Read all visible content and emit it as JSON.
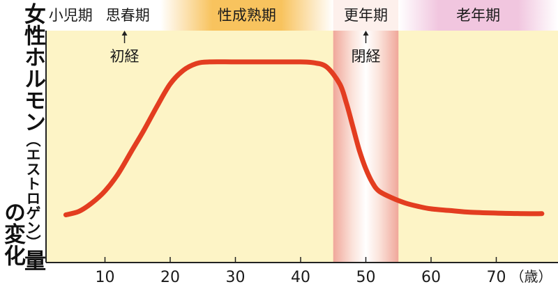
{
  "chart_data": {
    "type": "line",
    "title": "",
    "ylabel": {
      "main": "女性ホルモン",
      "paren": "（エストロゲン）",
      "suffix": "量",
      "line2": "の変化"
    },
    "x_unit": "（歳）",
    "xlim": [
      0,
      78
    ],
    "ticks": [
      10,
      20,
      30,
      40,
      50,
      60,
      70
    ],
    "tick_labels": [
      "10",
      "20",
      "30",
      "40",
      "50",
      "60",
      "70"
    ],
    "phases": [
      {
        "label": "小児期",
        "from": 0,
        "to": 8.5
      },
      {
        "label": "思春期",
        "from": 8.5,
        "to": 18.5
      },
      {
        "label": "性成熟期",
        "from": 18.5,
        "to": 45
      },
      {
        "label": "更年期",
        "from": 45,
        "to": 55
      },
      {
        "label": "老年期",
        "from": 55,
        "to": 78
      }
    ],
    "annotations": [
      {
        "label": "初経",
        "x": 13
      },
      {
        "label": "閉経",
        "x": 50
      }
    ],
    "menopause_band": [
      45,
      55
    ],
    "series": [
      {
        "points": [
          [
            4,
            8
          ],
          [
            6,
            10
          ],
          [
            8,
            15
          ],
          [
            10,
            22
          ],
          [
            12,
            32
          ],
          [
            14,
            45
          ],
          [
            16,
            58
          ],
          [
            18,
            72
          ],
          [
            20,
            85
          ],
          [
            22,
            93
          ],
          [
            24,
            97
          ],
          [
            26,
            98
          ],
          [
            30,
            98
          ],
          [
            35,
            98
          ],
          [
            40,
            98
          ],
          [
            42,
            97.5
          ],
          [
            44,
            95
          ],
          [
            46,
            85
          ],
          [
            47,
            74
          ],
          [
            48,
            60
          ],
          [
            49,
            46
          ],
          [
            50,
            35
          ],
          [
            51,
            27
          ],
          [
            52,
            22
          ],
          [
            54,
            18
          ],
          [
            56,
            15
          ],
          [
            58,
            13
          ],
          [
            60,
            11.5
          ],
          [
            63,
            10.5
          ],
          [
            66,
            9.5
          ],
          [
            70,
            9
          ],
          [
            74,
            8.7
          ],
          [
            77,
            8.7
          ]
        ]
      }
    ],
    "colors": {
      "plot_bg": "#fdf4c6",
      "line": "#e33d20",
      "band": "#f2b8ad",
      "maturity_header": "#f7bc55",
      "elderly_header": "#f0c4dc"
    }
  }
}
